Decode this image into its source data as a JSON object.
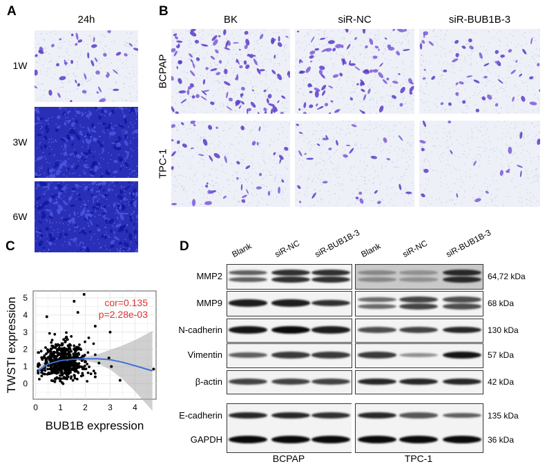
{
  "panel_a": {
    "label": "A",
    "header": "24h",
    "rows": [
      {
        "label": "1W",
        "density": 0.25
      },
      {
        "label": "3W",
        "density": 0.85
      },
      {
        "label": "6W",
        "density": 1.0
      }
    ]
  },
  "panel_b": {
    "label": "B",
    "columns": [
      "BK",
      "siR-NC",
      "siR-BUB1B-3"
    ],
    "rows": [
      {
        "label": "BCPAP",
        "densities": [
          0.45,
          0.4,
          0.2
        ]
      },
      {
        "label": "TPC-1",
        "densities": [
          0.2,
          0.12,
          0.08
        ]
      }
    ]
  },
  "panel_c": {
    "label": "C"
  },
  "chart_data": {
    "type": "scatter",
    "xlabel": "BUB1B expression",
    "ylabel": "TWSTI expression",
    "xlim": [
      -0.1,
      4.85
    ],
    "ylim": [
      -0.9,
      5.4
    ],
    "xticks": [
      0,
      1,
      2,
      3,
      4
    ],
    "yticks": [
      0,
      1,
      2,
      3,
      4,
      5
    ],
    "grid": true,
    "annotations": [
      "cor=0.135",
      "p=2.28e-03"
    ],
    "annotation_color": "#e03030",
    "fit_color": "#3a6fd8",
    "fit": [
      [
        0.1,
        0.75
      ],
      [
        0.5,
        1.15
      ],
      [
        1.0,
        1.35
      ],
      [
        1.5,
        1.42
      ],
      [
        2.0,
        1.45
      ],
      [
        2.5,
        1.45
      ],
      [
        3.0,
        1.4
      ],
      [
        3.5,
        1.25
      ],
      [
        4.0,
        1.05
      ],
      [
        4.7,
        0.75
      ]
    ],
    "outliers": [
      [
        1.95,
        5.2
      ],
      [
        1.55,
        4.8
      ],
      [
        0.45,
        3.9
      ],
      [
        1.7,
        4.15
      ],
      [
        2.4,
        3.35
      ],
      [
        3.0,
        3.0
      ],
      [
        2.95,
        1.5
      ],
      [
        3.05,
        1.0
      ],
      [
        3.4,
        0.2
      ],
      [
        4.75,
        0.85
      ],
      [
        2.4,
        0.4
      ],
      [
        2.55,
        1.2
      ]
    ],
    "cluster": {
      "x_mean": 1.1,
      "x_sd": 0.45,
      "y_mean": 1.1,
      "y_sd": 0.6,
      "n": 550
    }
  },
  "panel_d": {
    "label": "D",
    "lanes": [
      "Blank",
      "siR-NC",
      "siR-BUB1B-3",
      "Blank",
      "siR-NC",
      "siR-BUB1B-3"
    ],
    "groups": [
      "BCPAP",
      "TPC-1"
    ],
    "blots": [
      {
        "protein": "MMP2",
        "size": "64,72 kDa",
        "intensity": [
          0.55,
          0.8,
          0.8,
          0.35,
          0.3,
          0.85
        ]
      },
      {
        "protein": "MMP9",
        "size": "68 kDa",
        "intensity": [
          0.9,
          0.9,
          0.8,
          0.5,
          0.7,
          0.65
        ]
      },
      {
        "protein": "N-cadherin",
        "size": "130 kDa",
        "intensity": [
          0.95,
          1.0,
          0.9,
          0.65,
          0.7,
          0.85
        ]
      },
      {
        "protein": "Vimentin",
        "size": "57 kDa",
        "intensity": [
          0.55,
          0.75,
          0.75,
          0.75,
          0.3,
          0.95
        ]
      },
      {
        "protein": "β-actin",
        "size": "42 kDa",
        "intensity": [
          0.7,
          0.7,
          0.7,
          0.85,
          0.85,
          0.85
        ]
      },
      {
        "protein": "E-cadherin",
        "size": "135 kDa",
        "intensity": [
          0.85,
          0.85,
          0.8,
          0.85,
          0.6,
          0.55
        ]
      },
      {
        "protein": "GAPDH",
        "size": "36 kDa",
        "intensity": [
          1.0,
          1.0,
          1.0,
          1.0,
          1.0,
          1.0
        ]
      }
    ]
  }
}
